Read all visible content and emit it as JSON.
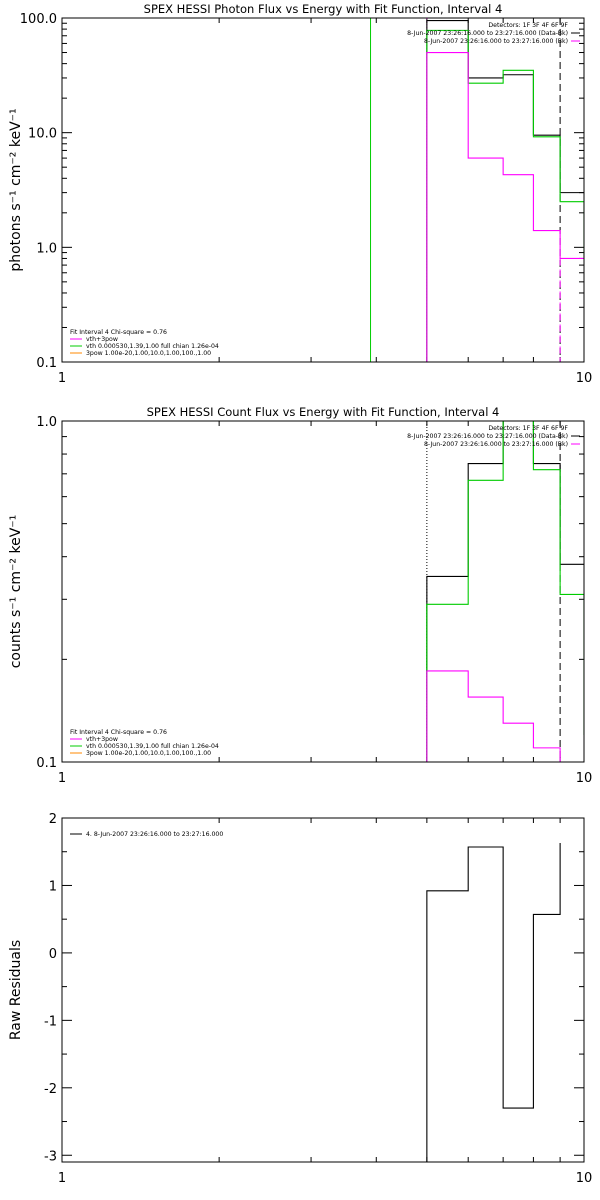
{
  "chart_data": [
    {
      "type": "line",
      "title": "SPEX HESSI Photon Flux vs Energy with Fit Function, Interval 4",
      "ylabel": "photons s⁻¹ cm⁻² keV⁻¹",
      "xscale": "log",
      "yscale": "log",
      "xlim": [
        1,
        10
      ],
      "ylim": [
        0.1,
        100
      ],
      "x_ticks": [
        "1",
        "10"
      ],
      "y_ticks": [
        "0.1",
        "1.0",
        "10.0",
        "100.0"
      ],
      "top_right_text": [
        {
          "text": "Detectors: 1F 3F 4F 6F 9F",
          "color": ""
        },
        {
          "text": "8-Jun-2007 23:26:16.000 to 23:27:16.000 (Data-Bk)",
          "color": "#000000"
        },
        {
          "text": "8-Jun-2007 23:26:16.000 to 23:27:16.000 (Bk)",
          "color": "#ff00ff"
        }
      ],
      "legend": {
        "header": "Fit Interval 4   Chi-square = 0.76",
        "entries": [
          {
            "text": "vth+3pow",
            "color": "#ff00ff"
          },
          {
            "text": "vth 0.000530,1.39,1.00   full chian 1.26e-04",
            "color": "#00cc00"
          },
          {
            "text": "3pow 1.00e-20,1.00,10.0,1.00,100.,1.00",
            "color": "#ff8800"
          }
        ]
      },
      "series": [
        {
          "color": "#000000",
          "edges": [
            5,
            6,
            7,
            8,
            9,
            10
          ],
          "values": [
            95,
            30,
            32,
            9.5,
            3
          ]
        },
        {
          "color": "#00cc00",
          "edges": [
            5,
            6,
            7,
            8,
            9,
            10
          ],
          "values": [
            78,
            27,
            35,
            9.2,
            2.5,
            0.8
          ]
        },
        {
          "color": "#ff00ff",
          "edges": [
            5,
            6,
            7,
            8,
            9,
            10
          ],
          "values": [
            50,
            6,
            4.3,
            1.4,
            0.8,
            0.8
          ]
        }
      ],
      "vlines": [
        {
          "x": 3.9,
          "color": "#00cc00",
          "style": "solid",
          "from": 0.1,
          "to": 100
        },
        {
          "x": 5,
          "color": "#ff00ff",
          "style": "dotted",
          "from": 0.1,
          "to": 100
        },
        {
          "x": 9,
          "color": "#000000",
          "style": "dashed",
          "from": 0.1,
          "to": 100
        },
        {
          "x": 9,
          "color": "#ff00ff",
          "style": "dashed",
          "from": 0.1,
          "to": 0.8
        }
      ]
    },
    {
      "type": "line",
      "title": "SPEX HESSI Count Flux vs Energy with Fit Function, Interval 4",
      "ylabel": "counts s⁻¹ cm⁻² keV⁻¹",
      "xscale": "log",
      "yscale": "log",
      "xlim": [
        1,
        10
      ],
      "ylim": [
        0.1,
        1.0
      ],
      "x_ticks": [
        "1",
        "10"
      ],
      "y_ticks": [
        "0.1",
        "1.0"
      ],
      "top_right_text": [
        {
          "text": "Detectors: 1F 3F 4F 6F 9F",
          "color": ""
        },
        {
          "text": "8-Jun-2007 23:26:16.000 to 23:27:16.000 (Data-Bk)",
          "color": "#000000"
        },
        {
          "text": "8-Jun-2007 23:26:16.000 to 23:27:16.000 (Bk)",
          "color": "#ff00ff"
        }
      ],
      "legend": {
        "header": "Fit Interval 4   Chi-square = 0.76",
        "entries": [
          {
            "text": "vth+3pow",
            "color": "#ff00ff"
          },
          {
            "text": "vth 0.000530,1.39,1.00   full chian 1.26e-04",
            "color": "#00cc00"
          },
          {
            "text": "3pow 1.00e-20,1.00,10.0,1.00,100.,1.00",
            "color": "#ff8800"
          }
        ]
      },
      "series": [
        {
          "color": "#000000",
          "edges": [
            5,
            6,
            7,
            8,
            9,
            10
          ],
          "values": [
            0.35,
            0.75,
            1.0,
            0.75,
            0.38
          ]
        },
        {
          "color": "#00cc00",
          "edges": [
            5,
            6,
            7,
            8,
            9,
            10
          ],
          "values": [
            0.29,
            0.67,
            1.0,
            0.72,
            0.31,
            0.12
          ]
        },
        {
          "color": "#ff00ff",
          "edges": [
            5,
            6,
            7,
            8,
            9,
            10
          ],
          "values": [
            0.185,
            0.155,
            0.13,
            0.11,
            0.1
          ]
        }
      ],
      "vlines": [
        {
          "x": 5,
          "color": "#000000",
          "style": "dotted",
          "from": 0.1,
          "to": 1.0
        },
        {
          "x": 5,
          "color": "#00cc00",
          "style": "solid",
          "from": 0.1,
          "to": 0.29
        },
        {
          "x": 9,
          "color": "#000000",
          "style": "dashed",
          "from": 0.1,
          "to": 1.0
        },
        {
          "x": 9,
          "color": "#ff00ff",
          "style": "dashed",
          "from": 0.1,
          "to": 0.1
        }
      ]
    },
    {
      "type": "line",
      "title": "",
      "ylabel": "Raw Residuals",
      "xscale": "log",
      "yscale": "linear",
      "xlim": [
        1,
        10
      ],
      "ylim": [
        -3.1,
        2.0
      ],
      "x_ticks": [
        "1",
        "10"
      ],
      "y_ticks": [
        "-3",
        "-2",
        "-1",
        "0",
        "1",
        "2"
      ],
      "legend": {
        "header": "",
        "entries": [
          {
            "text": "4.  8-Jun-2007 23:26:16.000 to 23:27:16.000",
            "color": "#000000"
          }
        ]
      },
      "series": [
        {
          "color": "#000000",
          "edges": [
            5,
            6,
            7,
            8,
            9
          ],
          "values": [
            0.92,
            1.57,
            -2.3,
            0.57,
            1.63
          ],
          "drop_to_axis": true
        }
      ],
      "vlines": []
    }
  ]
}
